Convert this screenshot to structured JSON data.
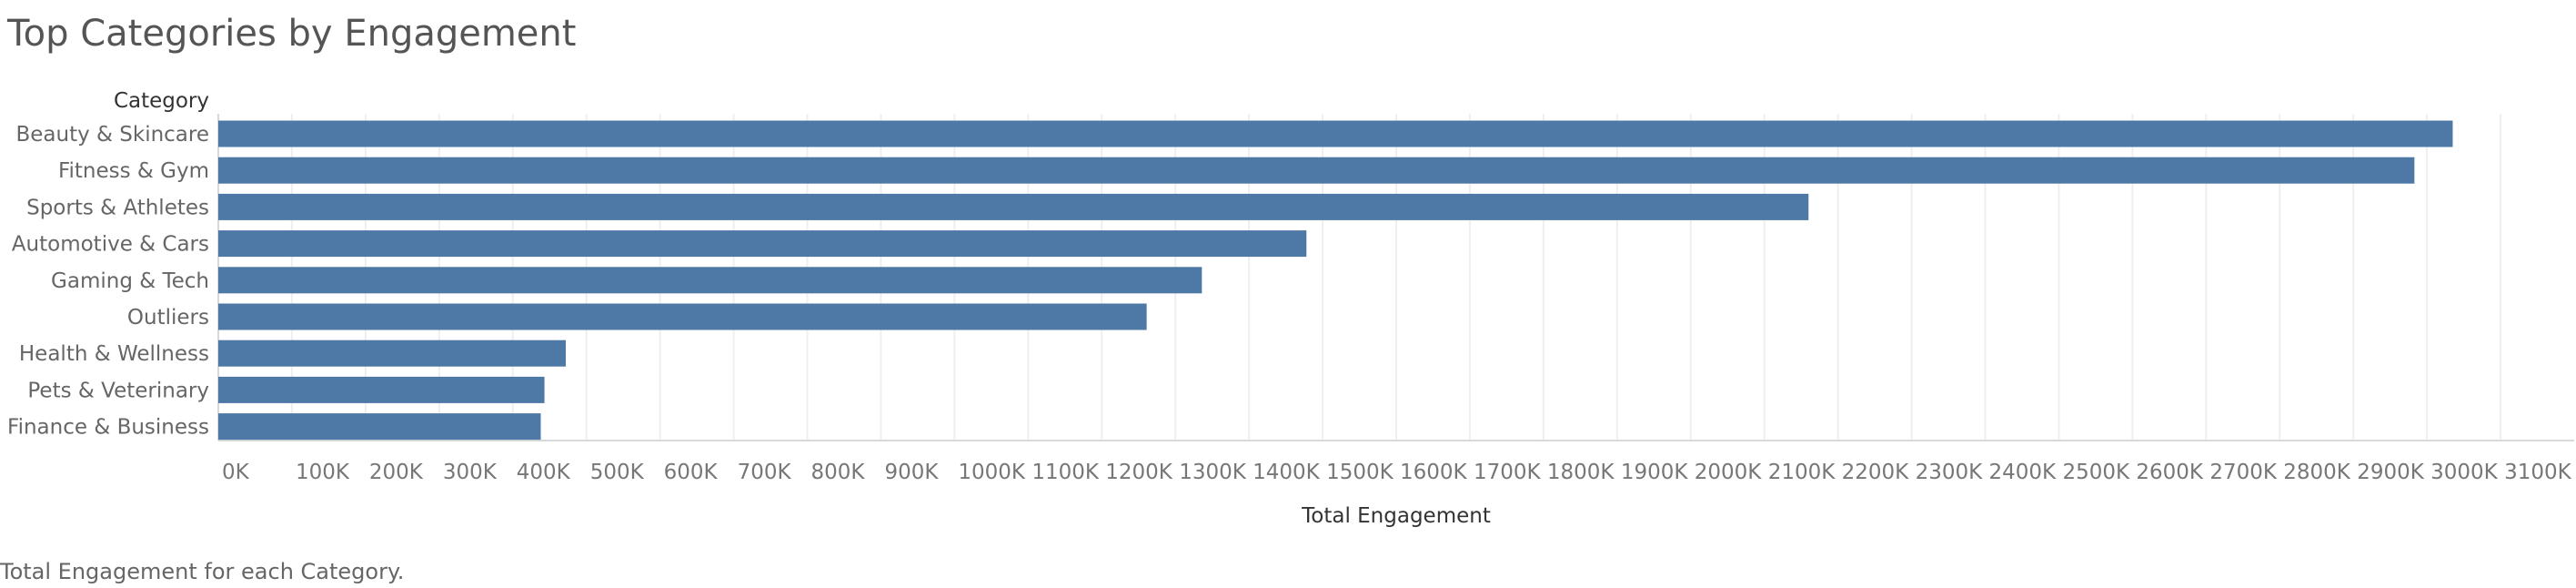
{
  "title": "Top Categories by Engagement",
  "caption": "Total Engagement for each Category.",
  "colors": {
    "bar": "#4e79a7",
    "grid": "#efefef",
    "axis": "#d9d9d9"
  },
  "chart_data": {
    "type": "bar",
    "orientation": "horizontal",
    "title": "Top Categories by Engagement",
    "category_header": "Category",
    "xlabel": "Total Engagement",
    "xlim": [
      0,
      3200000
    ],
    "grid": true,
    "categories": [
      "Beauty & Skincare",
      "Fitness & Gym",
      "Sports & Athletes",
      "Automotive & Cars",
      "Gaming & Tech",
      "Outliers",
      "Health & Wellness",
      "Pets & Veterinary",
      "Finance & Business"
    ],
    "values": [
      3035000,
      2983000,
      2160000,
      1478000,
      1336000,
      1261000,
      472000,
      443000,
      438000
    ],
    "x_ticks": [
      0,
      100000,
      200000,
      300000,
      400000,
      500000,
      600000,
      700000,
      800000,
      900000,
      1000000,
      1100000,
      1200000,
      1300000,
      1400000,
      1500000,
      1600000,
      1700000,
      1800000,
      1900000,
      2000000,
      2100000,
      2200000,
      2300000,
      2400000,
      2500000,
      2600000,
      2700000,
      2800000,
      2900000,
      3000000,
      3100000
    ],
    "x_tick_labels": [
      "0K",
      "100K",
      "200K",
      "300K",
      "400K",
      "500K",
      "600K",
      "700K",
      "800K",
      "900K",
      "1000K",
      "1100K",
      "1200K",
      "1300K",
      "1400K",
      "1500K",
      "1600K",
      "1700K",
      "1800K",
      "1900K",
      "2000K",
      "2100K",
      "2200K",
      "2300K",
      "2400K",
      "2500K",
      "2600K",
      "2700K",
      "2800K",
      "2900K",
      "3000K",
      "3100K"
    ]
  }
}
